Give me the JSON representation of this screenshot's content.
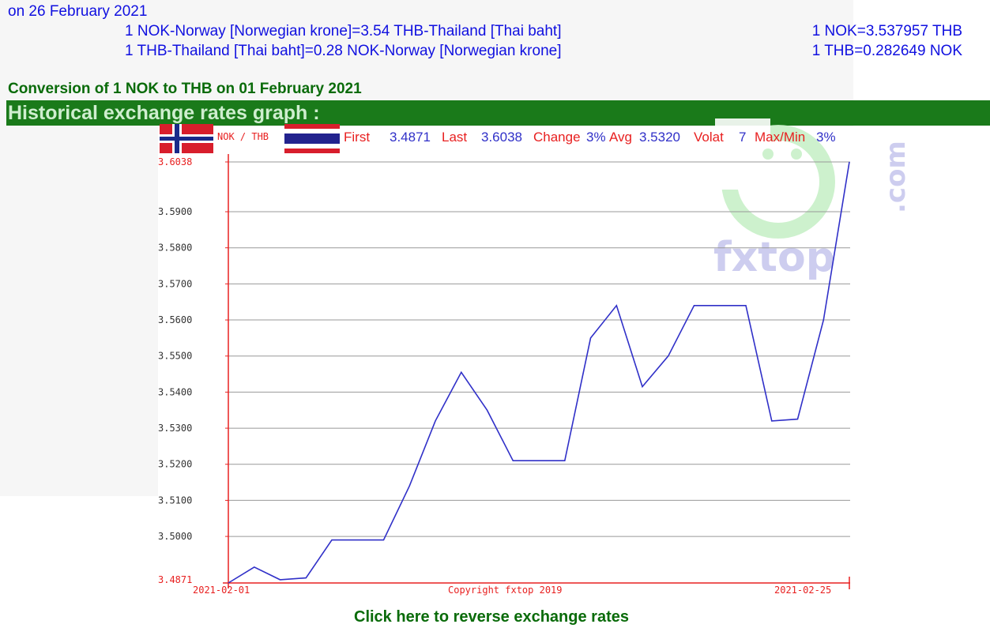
{
  "header": {
    "date_line": "on 26 February 2021",
    "rate_lines": [
      {
        "text": "1 NOK-Norway [Norwegian krone]=3.54 THB-Thailand [Thai baht]",
        "exact": "1 NOK=3.537957 THB"
      },
      {
        "text": "1 THB-Thailand [Thai baht]=0.28 NOK-Norway [Norwegian krone]",
        "exact": "1 THB=0.282649 NOK"
      }
    ]
  },
  "conversion_title": "Conversion of 1 NOK to THB on 01 February 2021",
  "historical_title": "Historical exchange rates graph :",
  "reverse_link": "Click here to reverse exchange rates",
  "colors": {
    "green": "#1a7a1a",
    "blue": "#1010e0",
    "red": "#e82020",
    "line": "#3030c8"
  },
  "chart_data": {
    "type": "line",
    "pair_label": "NOK / THB",
    "stats": {
      "first_label": "First",
      "first_value": "3.4871",
      "last_label": "Last",
      "last_value": "3.6038",
      "change_label": "Change",
      "change_value": "3%",
      "avg_label": "Avg",
      "avg_value": "3.5320",
      "volat_label": "Volat",
      "volat_value": "7",
      "maxmin_label": "Max/Min",
      "maxmin_value": "3%"
    },
    "x_start": "2021-02-01",
    "x_end": "2021-02-25",
    "copyright": "Copyright fxtop 2019",
    "watermark": "fxtop",
    "watermark_com": ".com",
    "ylim": [
      3.4871,
      3.6038
    ],
    "yticks": [
      "3.4871",
      "3.5000",
      "3.5100",
      "3.5200",
      "3.5300",
      "3.5400",
      "3.5500",
      "3.5600",
      "3.5700",
      "3.5800",
      "3.5900",
      "3.6038"
    ],
    "x": [
      "2021-02-01",
      "2021-02-02",
      "2021-02-03",
      "2021-02-04",
      "2021-02-05",
      "2021-02-06",
      "2021-02-07",
      "2021-02-08",
      "2021-02-09",
      "2021-02-10",
      "2021-02-11",
      "2021-02-12",
      "2021-02-13",
      "2021-02-14",
      "2021-02-15",
      "2021-02-16",
      "2021-02-17",
      "2021-02-18",
      "2021-02-19",
      "2021-02-20",
      "2021-02-21",
      "2021-02-22",
      "2021-02-23",
      "2021-02-24",
      "2021-02-25"
    ],
    "values": [
      3.4871,
      3.4915,
      3.488,
      3.4885,
      3.499,
      3.499,
      3.499,
      3.514,
      3.532,
      3.5455,
      3.535,
      3.521,
      3.521,
      3.521,
      3.555,
      3.564,
      3.5415,
      3.55,
      3.564,
      3.564,
      3.564,
      3.532,
      3.5325,
      3.56,
      3.6038
    ]
  }
}
